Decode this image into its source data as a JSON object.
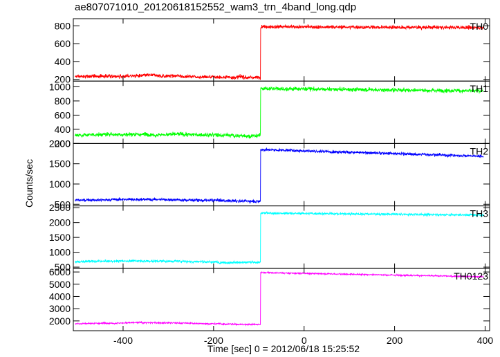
{
  "chart_data": {
    "type": "line",
    "title": "ae807071010_20120618152552_wam3_trn_4band_long.qdp",
    "xlabel": "Time [sec] 0 = 2012/06/18 15:25:52",
    "ylabel": "Counts/sec",
    "xlim": [
      -510,
      410
    ],
    "x_ticks": [
      -400,
      -200,
      0,
      200,
      400
    ],
    "grid": false,
    "step_time": -96,
    "panels": [
      {
        "name": "TH0",
        "color": "#ff0000",
        "ylim": [
          180,
          880
        ],
        "y_ticks": [
          200,
          400,
          600,
          800
        ],
        "pre_level": 230,
        "post_level": 790,
        "post_end": 780,
        "noise": 20
      },
      {
        "name": "TH1",
        "color": "#00ff00",
        "ylim": [
          200,
          1080
        ],
        "y_ticks": [
          200,
          400,
          600,
          800,
          1000
        ],
        "pre_level": 320,
        "post_level": 975,
        "post_end": 940,
        "noise": 28
      },
      {
        "name": "TH2",
        "color": "#0000ff",
        "ylim": [
          460,
          2000
        ],
        "y_ticks": [
          500,
          1000,
          1500,
          2000
        ],
        "pre_level": 600,
        "post_level": 1850,
        "post_end": 1680,
        "noise": 35
      },
      {
        "name": "TH3",
        "color": "#00ffff",
        "ylim": [
          460,
          2560
        ],
        "y_ticks": [
          500,
          1000,
          1500,
          2000,
          2500
        ],
        "pre_level": 680,
        "post_level": 2320,
        "post_end": 2250,
        "noise": 40
      },
      {
        "name": "TH0123",
        "color": "#ff00ff",
        "ylim": [
          1200,
          6300
        ],
        "y_ticks": [
          2000,
          3000,
          4000,
          5000,
          6000
        ],
        "pre_level": 1780,
        "post_level": 5950,
        "post_end": 5600,
        "noise": 60
      }
    ]
  }
}
